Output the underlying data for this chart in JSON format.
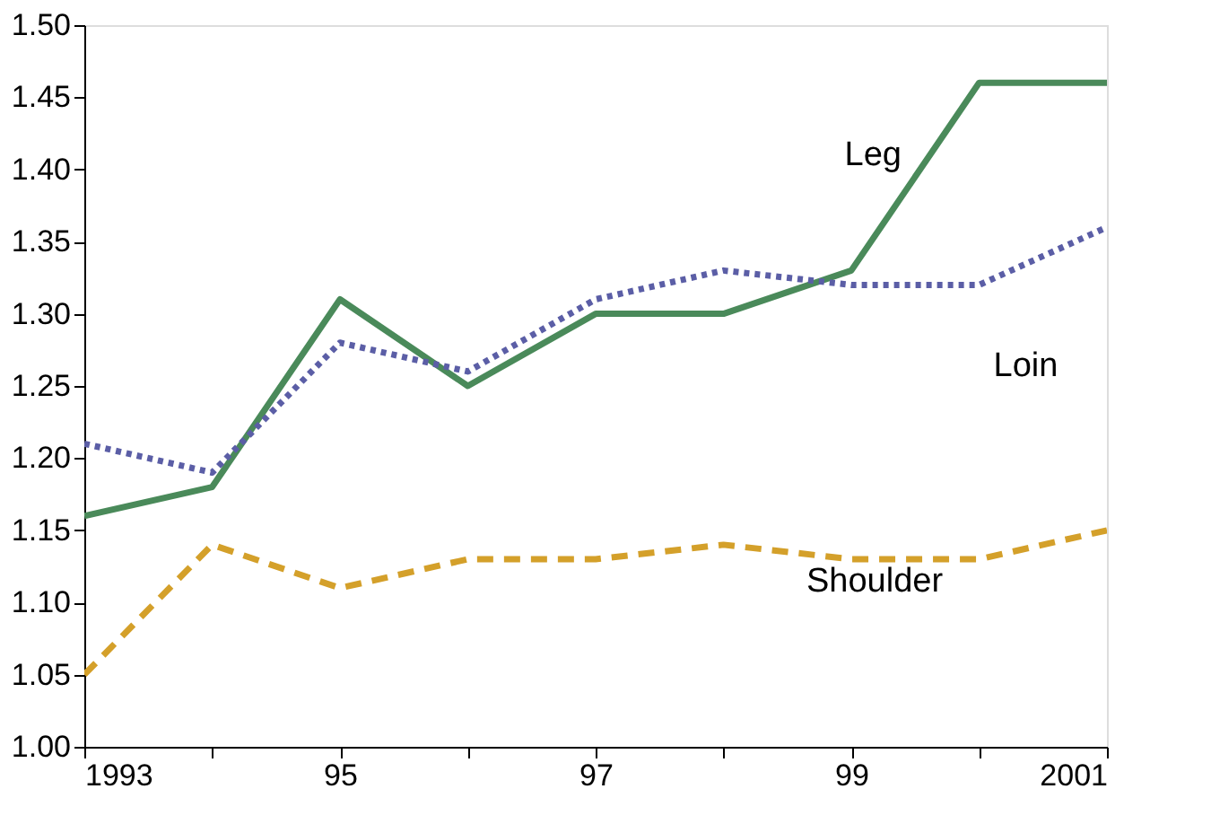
{
  "chart_data": {
    "type": "line",
    "x": [
      1993,
      1994,
      1995,
      1996,
      1997,
      1998,
      1999,
      2000,
      2001
    ],
    "series": [
      {
        "name": "Leg",
        "color": "#4a8a5a",
        "line_style": "solid",
        "values": [
          1.16,
          1.18,
          1.31,
          1.25,
          1.3,
          1.3,
          1.33,
          1.46,
          1.46
        ]
      },
      {
        "name": "Loin",
        "color": "#5b5ea6",
        "line_style": "dotted",
        "values": [
          1.21,
          1.19,
          1.28,
          1.26,
          1.31,
          1.33,
          1.32,
          1.32,
          1.36
        ]
      },
      {
        "name": "Shoulder",
        "color": "#d4a02a",
        "line_style": "dashed",
        "values": [
          1.05,
          1.14,
          1.11,
          1.13,
          1.13,
          1.14,
          1.13,
          1.13,
          1.15
        ]
      }
    ],
    "xlim": [
      1993,
      2001
    ],
    "xticks": [
      1993,
      {
        "value": 1994,
        "label": null
      },
      {
        "value": 1995,
        "label": "95"
      },
      {
        "value": 1996,
        "label": null
      },
      {
        "value": 1997,
        "label": "97"
      },
      {
        "value": 1998,
        "label": null
      },
      {
        "value": 1999,
        "label": "99"
      },
      {
        "value": 2000,
        "label": null
      },
      2001
    ],
    "ylim": [
      1.0,
      1.5
    ],
    "yticks": [
      {
        "value": 1.0,
        "label": "1.00"
      },
      {
        "value": 1.05,
        "label": "1.05"
      },
      {
        "value": 1.1,
        "label": "1.10"
      },
      {
        "value": 1.15,
        "label": "1.15"
      },
      {
        "value": 1.2,
        "label": "1.20"
      },
      {
        "value": 1.25,
        "label": "1.25"
      },
      {
        "value": 1.3,
        "label": "1.30"
      },
      {
        "value": 1.35,
        "label": "1.35"
      },
      {
        "value": 1.4,
        "label": "1.40"
      },
      {
        "value": 1.45,
        "label": "1.45"
      },
      {
        "value": 1.5,
        "label": "1.50"
      }
    ],
    "grid": false,
    "legend": false,
    "marker": "none"
  }
}
